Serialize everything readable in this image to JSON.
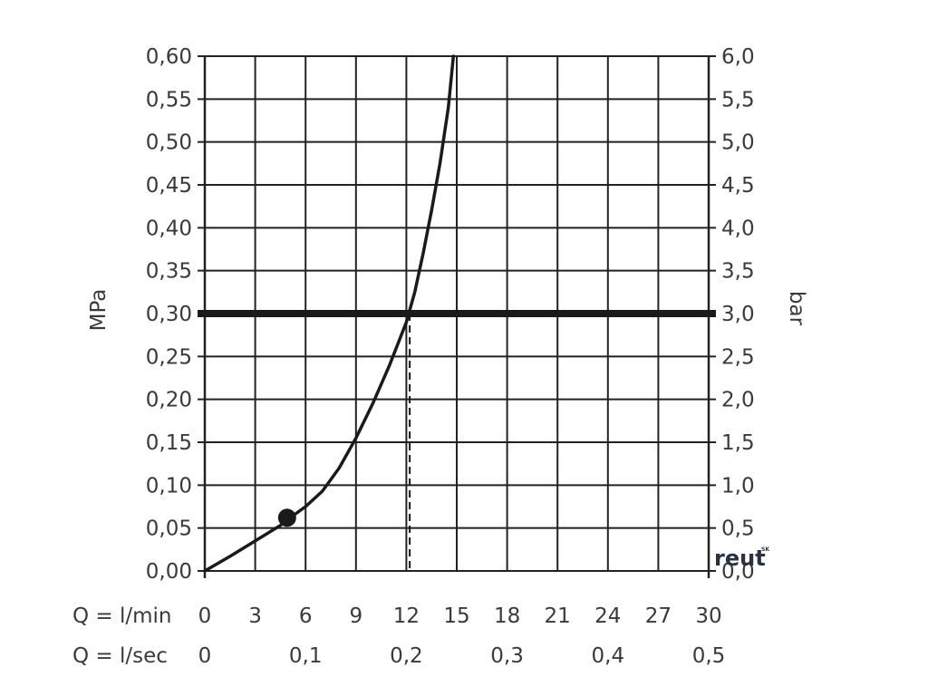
{
  "chart_data": {
    "type": "line",
    "ylabel_left": "MPa",
    "ylabel_right": "bar",
    "ylim_left": [
      0,
      0.6
    ],
    "ylim_right": [
      0,
      6.0
    ],
    "xlim": [
      0,
      30
    ],
    "y_ticks_left": [
      "0,00",
      "0,05",
      "0,10",
      "0,15",
      "0,20",
      "0,25",
      "0,30",
      "0,35",
      "0,40",
      "0,45",
      "0,50",
      "0,55",
      "0,60"
    ],
    "y_ticks_right": [
      "0,0",
      "0,5",
      "1,0",
      "1,5",
      "2,0",
      "2,5",
      "3,0",
      "3,5",
      "4,0",
      "4,5",
      "5,0",
      "5,5",
      "6,0"
    ],
    "x_ticks_lmin": {
      "label": "Q = l/min",
      "values": [
        0,
        3,
        6,
        9,
        12,
        15,
        18,
        21,
        24,
        27,
        30
      ],
      "labels": [
        "0",
        "3",
        "6",
        "9",
        "12",
        "15",
        "18",
        "21",
        "24",
        "27",
        "30"
      ]
    },
    "x_ticks_lsec": {
      "label": "Q = l/sec",
      "values": [
        0,
        6,
        12,
        18,
        24,
        30
      ],
      "labels": [
        "0",
        "0,1",
        "0,2",
        "0,3",
        "0,4",
        "0,5"
      ]
    },
    "grid": true,
    "series": [
      {
        "x": [
          0,
          1.5,
          3,
          4.5,
          5,
          6,
          7,
          8,
          9,
          10,
          11,
          12,
          12.5,
          13,
          13.5,
          14,
          14.5,
          14.8
        ],
        "y": [
          0,
          0.017,
          0.035,
          0.053,
          0.061,
          0.075,
          0.093,
          0.12,
          0.155,
          0.195,
          0.24,
          0.29,
          0.325,
          0.37,
          0.42,
          0.475,
          0.54,
          0.6
        ]
      }
    ],
    "reference_line_y": 0.3,
    "reference_drop_x": 12.2,
    "marker_point": {
      "x": 4.9,
      "y": 0.062
    }
  },
  "watermark": {
    "text": "reut",
    "sup": "SK"
  }
}
